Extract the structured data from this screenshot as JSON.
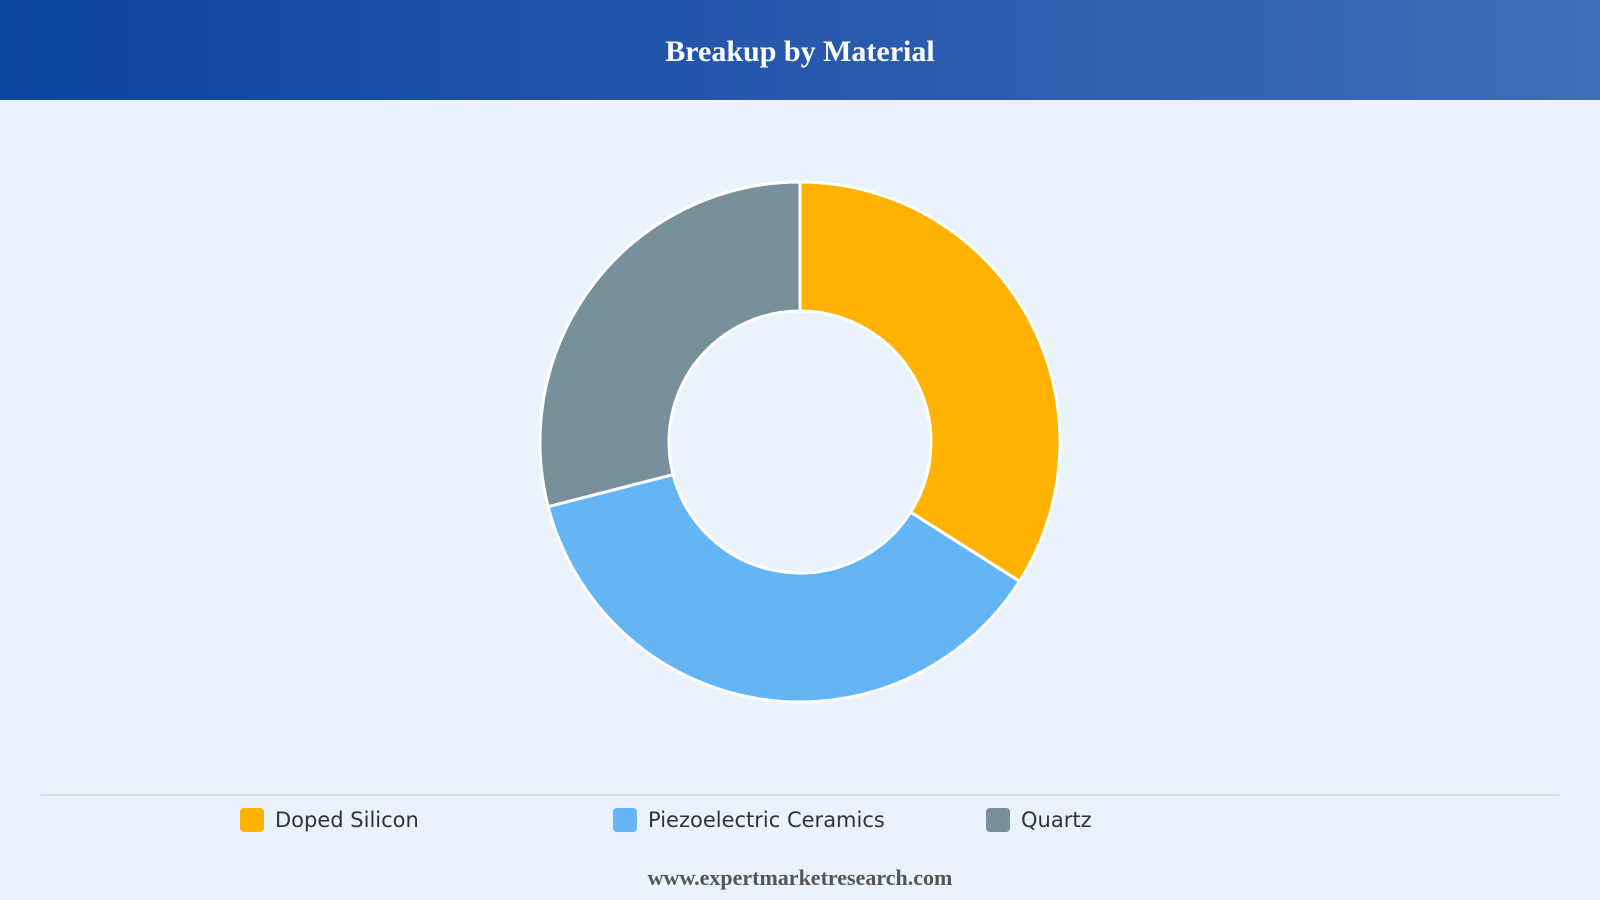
{
  "chart_data": {
    "type": "pie",
    "title": "Breakup by Material",
    "categories": [
      "Doped Silicon",
      "Piezoelectric Ceramics",
      "Quartz"
    ],
    "values": [
      34,
      37,
      29
    ],
    "colors": [
      "#ffb300",
      "#64b5f6",
      "#78909c"
    ],
    "source": "www.expertmarketresearch.com"
  }
}
